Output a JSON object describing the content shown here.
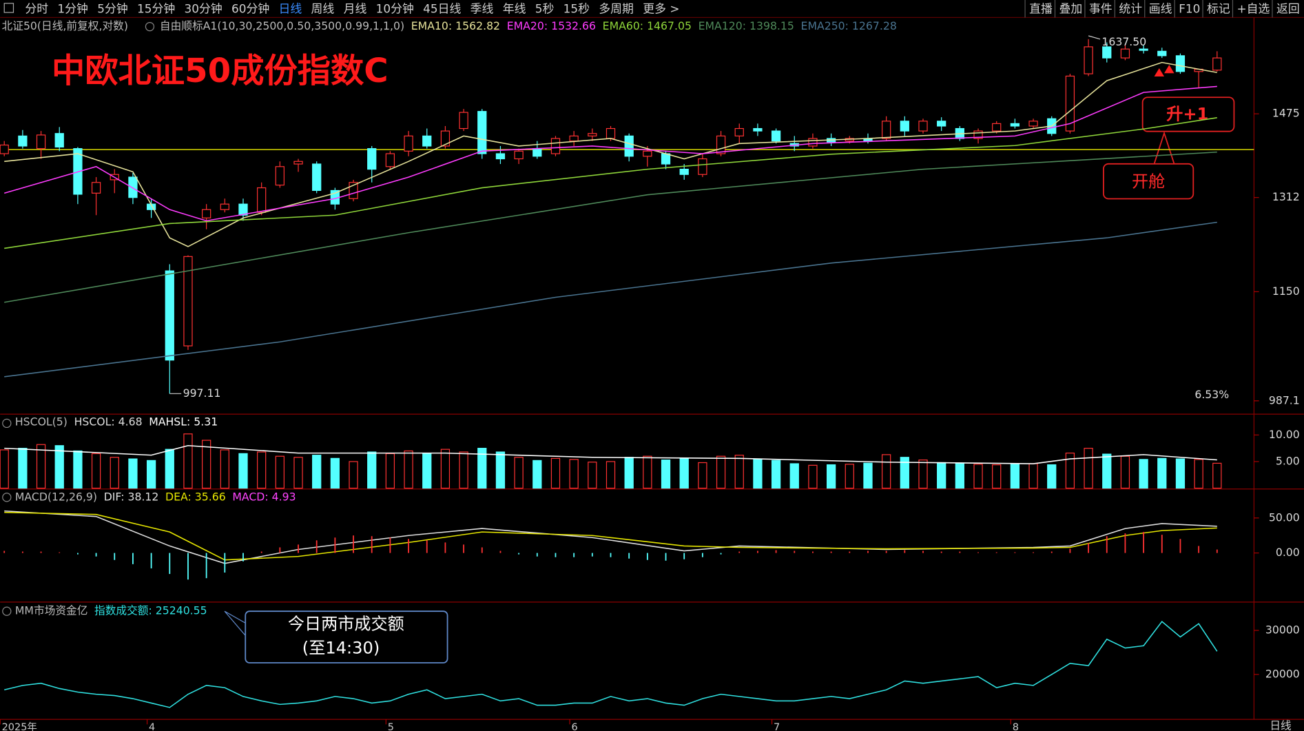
{
  "toolbar": {
    "left": [
      "分时",
      "1分钟",
      "5分钟",
      "15分钟",
      "30分钟",
      "60分钟",
      "日线",
      "周线",
      "月线",
      "10分钟",
      "45日线",
      "季线",
      "年线",
      "5秒",
      "15秒",
      "多周期",
      "更多 >"
    ],
    "active_index": 6,
    "right": [
      "直播",
      "叠加",
      "事件",
      "统计",
      "画线",
      "F10",
      "标记",
      "+自选",
      "返回"
    ]
  },
  "header": {
    "symbol": "北证50(日线,前复权,对数)",
    "indicator": "自由顺标A1(10,30,2500,0.50,3500,0.99,1,1,0)"
  },
  "chart_data": [
    {
      "type": "candlestick",
      "title": "中欧北证50成份指数C",
      "log_scale": true,
      "up_color": "#ff3232",
      "down_color": "#54ffff",
      "categories": [
        "2025年",
        null,
        null,
        null,
        null,
        null,
        null,
        null,
        "4",
        null,
        null,
        null,
        null,
        null,
        null,
        null,
        null,
        null,
        null,
        null,
        null,
        "5",
        null,
        null,
        null,
        null,
        null,
        null,
        null,
        null,
        null,
        "6",
        null,
        null,
        null,
        null,
        null,
        null,
        null,
        null,
        null,
        null,
        "7",
        null,
        null,
        null,
        null,
        null,
        null,
        null,
        null,
        null,
        null,
        null,
        null,
        "8",
        null,
        null,
        null,
        null,
        null,
        null,
        null,
        null,
        null,
        null,
        null
      ],
      "open": [
        1395,
        1430,
        1405,
        1435,
        1405,
        1320,
        1345,
        1350,
        1300,
        1184,
        1066,
        1275,
        1290,
        1300,
        1285,
        1335,
        1375,
        1375,
        1325,
        1310,
        1405,
        1370,
        1400,
        1430,
        1410,
        1445,
        1480,
        1395,
        1385,
        1405,
        1395,
        1420,
        1430,
        1425,
        1430,
        1390,
        1395,
        1365,
        1355,
        1395,
        1430,
        1445,
        1440,
        1415,
        1410,
        1425,
        1420,
        1425,
        1425,
        1460,
        1440,
        1460,
        1445,
        1425,
        1440,
        1455,
        1450,
        1465,
        1440,
        1560,
        1620,
        1595,
        1615,
        1610,
        1600,
        1565,
        1568
      ],
      "high": [
        1420,
        1442,
        1440,
        1448,
        1408,
        1350,
        1365,
        1358,
        1310,
        1195,
        1210,
        1300,
        1310,
        1310,
        1340,
        1380,
        1385,
        1380,
        1330,
        1345,
        1410,
        1400,
        1440,
        1445,
        1450,
        1485,
        1485,
        1410,
        1405,
        1420,
        1430,
        1440,
        1445,
        1450,
        1435,
        1410,
        1400,
        1375,
        1395,
        1440,
        1455,
        1455,
        1445,
        1430,
        1435,
        1435,
        1430,
        1435,
        1470,
        1470,
        1465,
        1468,
        1450,
        1445,
        1460,
        1465,
        1465,
        1470,
        1560,
        1637.5,
        1630,
        1625,
        1625,
        1618,
        1605,
        1570,
        1610
      ],
      "low": [
        1390,
        1405,
        1385,
        1400,
        1300,
        1280,
        1320,
        1300,
        1275,
        997.11,
        1060,
        1255,
        1285,
        1270,
        1280,
        1330,
        1360,
        1320,
        1290,
        1305,
        1340,
        1365,
        1390,
        1405,
        1405,
        1440,
        1385,
        1375,
        1375,
        1385,
        1390,
        1410,
        1420,
        1420,
        1380,
        1370,
        1365,
        1345,
        1350,
        1390,
        1415,
        1430,
        1415,
        1400,
        1405,
        1410,
        1415,
        1415,
        1420,
        1430,
        1435,
        1440,
        1420,
        1415,
        1435,
        1445,
        1445,
        1430,
        1435,
        1555,
        1585,
        1590,
        1605,
        1595,
        1560,
        1530,
        1565
      ],
      "close": [
        1412,
        1410,
        1432,
        1408,
        1318,
        1340,
        1355,
        1312,
        1290,
        1045,
        1208,
        1290,
        1300,
        1280,
        1330,
        1370,
        1380,
        1325,
        1300,
        1340,
        1365,
        1395,
        1430,
        1410,
        1440,
        1478,
        1395,
        1385,
        1400,
        1390,
        1425,
        1430,
        1435,
        1445,
        1390,
        1400,
        1375,
        1355,
        1385,
        1430,
        1445,
        1440,
        1420,
        1410,
        1425,
        1418,
        1425,
        1420,
        1460,
        1440,
        1460,
        1450,
        1425,
        1440,
        1455,
        1450,
        1460,
        1435,
        1555,
        1620,
        1595,
        1615,
        1612,
        1600,
        1565,
        1570,
        1595
      ],
      "ylim": [
        970,
        1686
      ],
      "yticks": [
        987.1,
        1150,
        1312,
        1475
      ],
      "series": [
        {
          "name": "EMA10: 1562.82",
          "style": "line",
          "color": "#e6e29a",
          "x": [
            0,
            4,
            7,
            9,
            10,
            13,
            18,
            22,
            25,
            28,
            33,
            37,
            40,
            47,
            55,
            57,
            60,
            63,
            66
          ],
          "values": [
            1380,
            1395,
            1360,
            1240,
            1225,
            1275,
            1320,
            1380,
            1430,
            1410,
            1425,
            1385,
            1415,
            1425,
            1440,
            1450,
            1545,
            1585,
            1562.82
          ]
        },
        {
          "name": "EMA20: 1532.66",
          "style": "line",
          "color": "#ff3cff",
          "x": [
            0,
            5,
            9,
            11,
            18,
            22,
            26,
            32,
            38,
            44,
            55,
            58,
            62,
            66
          ],
          "values": [
            1320,
            1370,
            1290,
            1270,
            1310,
            1350,
            1400,
            1410,
            1395,
            1415,
            1430,
            1455,
            1520,
            1532.66
          ]
        },
        {
          "name": "EMA60: 1467.05",
          "style": "line",
          "color": "#8fd63a",
          "x": [
            0,
            9,
            18,
            26,
            35,
            45,
            55,
            62,
            66
          ],
          "values": [
            1222,
            1265,
            1280,
            1330,
            1365,
            1394,
            1411,
            1444,
            1467.05
          ]
        },
        {
          "name": "EMA120: 1398.15",
          "style": "line",
          "color": "#4f8a5a",
          "x": [
            0,
            10,
            22,
            35,
            50,
            66
          ],
          "values": [
            1133,
            1184,
            1249,
            1317,
            1365,
            1398.15
          ]
        },
        {
          "name": "EMA250: 1267.28",
          "style": "line",
          "color": "#4a7490",
          "x": [
            0,
            15,
            30,
            45,
            60,
            66
          ],
          "values": [
            1021,
            1072,
            1141,
            1197,
            1240,
            1267.28
          ]
        }
      ],
      "reference_line": 1403,
      "reference_color": "#d8d800",
      "low_label": {
        "value": 997.11,
        "label": "997.11"
      },
      "high_label": {
        "value": 1637.5,
        "label": "1637.50"
      },
      "note": "6.53%",
      "callouts": [
        "升+1",
        "开舱"
      ]
    },
    {
      "type": "bar",
      "title": "HSCOL(5)",
      "color_by": "candle",
      "ylim": [
        0,
        13.6
      ],
      "yticks": [
        {
          "value": 5,
          "label": "5.00"
        },
        {
          "value": 10,
          "label": "10.00"
        }
      ],
      "series": [
        {
          "name": "HSCOL: 4.68",
          "style": "bar",
          "color": "#dddddd",
          "values": [
            7.2,
            7.5,
            8.2,
            8.0,
            7.0,
            6.5,
            5.8,
            5.5,
            5.2,
            7.3,
            10.2,
            9.0,
            7.2,
            6.5,
            6.8,
            6.0,
            5.8,
            6.2,
            5.6,
            5.0,
            6.8,
            6.5,
            7.0,
            6.5,
            7.3,
            6.8,
            7.5,
            6.8,
            5.8,
            5.2,
            5.6,
            5.4,
            4.9,
            5.0,
            5.8,
            6.0,
            5.3,
            5.5,
            4.8,
            6.0,
            6.2,
            5.5,
            5.2,
            4.6,
            4.3,
            4.4,
            4.5,
            4.7,
            6.3,
            5.8,
            5.3,
            4.8,
            4.6,
            4.5,
            4.4,
            4.5,
            4.6,
            4.4,
            6.6,
            7.5,
            6.4,
            6.0,
            5.4,
            5.6,
            5.5,
            5.4,
            4.68
          ]
        },
        {
          "name": "MAHSL: 5.31",
          "style": "line",
          "color": "#ffffff",
          "x": [
            0,
            8,
            10,
            16,
            24,
            32,
            40,
            48,
            56,
            58,
            62,
            66
          ],
          "values": [
            7.5,
            6.2,
            8.0,
            6.6,
            6.6,
            5.8,
            5.6,
            4.9,
            4.6,
            5.5,
            6.3,
            5.31
          ]
        }
      ]
    },
    {
      "type": "macd",
      "title": "MACD(12,26,9)",
      "color_by": "sign",
      "ylim": [
        -69,
        89
      ],
      "yticks": [
        {
          "value": 0,
          "label": "0.00"
        },
        {
          "value": 50,
          "label": "50.00"
        }
      ],
      "series": [
        {
          "name": "DIF: 38.12",
          "style": "line",
          "color": "#e0e0e0",
          "x": [
            0,
            5,
            9,
            12,
            16,
            22,
            26,
            32,
            37,
            40,
            48,
            56,
            58,
            61,
            63,
            66
          ],
          "values": [
            60,
            52,
            10,
            -15,
            5,
            25,
            35,
            22,
            3,
            10,
            5,
            8,
            10,
            35,
            42,
            38.12
          ]
        },
        {
          "name": "DEA: 35.66",
          "style": "line",
          "color": "#e6e600",
          "x": [
            0,
            5,
            9,
            12,
            16,
            22,
            26,
            32,
            37,
            40,
            48,
            56,
            58,
            61,
            63,
            66
          ],
          "values": [
            58,
            55,
            30,
            -10,
            -5,
            15,
            30,
            25,
            10,
            8,
            6,
            7,
            8,
            25,
            32,
            35.66
          ]
        },
        {
          "name": "MACD: 4.93",
          "style": "bar",
          "color": "#ff44ff",
          "values": [
            3,
            2,
            2,
            1,
            -2,
            -5,
            -10,
            -16,
            -22,
            -30,
            -38,
            -36,
            -28,
            -12,
            2,
            8,
            12,
            18,
            22,
            25,
            24,
            22,
            20,
            18,
            15,
            12,
            8,
            3,
            -2,
            -5,
            -6,
            -6,
            -5,
            -6,
            -8,
            -10,
            -11,
            -9,
            -6,
            -2,
            2,
            3,
            4,
            3,
            2,
            2,
            2,
            3,
            3,
            4,
            3,
            2,
            2,
            1,
            1,
            1,
            1,
            2,
            6,
            14,
            24,
            28,
            30,
            26,
            20,
            10,
            4.93
          ]
        }
      ]
    },
    {
      "type": "line",
      "title": "MM市场资金亿",
      "ylim": [
        9800,
        35850
      ],
      "yticks": [
        20000,
        30000
      ],
      "series": [
        {
          "name": "指数成交额: 25240.55",
          "style": "line",
          "color": "#2fe0e0",
          "values": [
            16500,
            17500,
            18000,
            16800,
            16000,
            15500,
            15200,
            14500,
            13500,
            12500,
            15500,
            17500,
            17000,
            15000,
            14000,
            13200,
            13500,
            14000,
            15000,
            14500,
            13500,
            14000,
            15500,
            16500,
            14500,
            15000,
            15500,
            14000,
            14500,
            13000,
            13000,
            13500,
            13500,
            15000,
            14000,
            14500,
            13500,
            13000,
            14500,
            15500,
            15000,
            14500,
            14000,
            14000,
            14500,
            15000,
            14500,
            15500,
            16500,
            18500,
            18000,
            18500,
            19000,
            19500,
            17000,
            18000,
            17500,
            20000,
            22500,
            22000,
            28000,
            26000,
            26500,
            32000,
            28500,
            31500,
            25240.55
          ]
        }
      ],
      "callouts": [
        "今日两市成交额",
        "(至14:30)"
      ]
    }
  ],
  "footer": {
    "period": "日线"
  }
}
